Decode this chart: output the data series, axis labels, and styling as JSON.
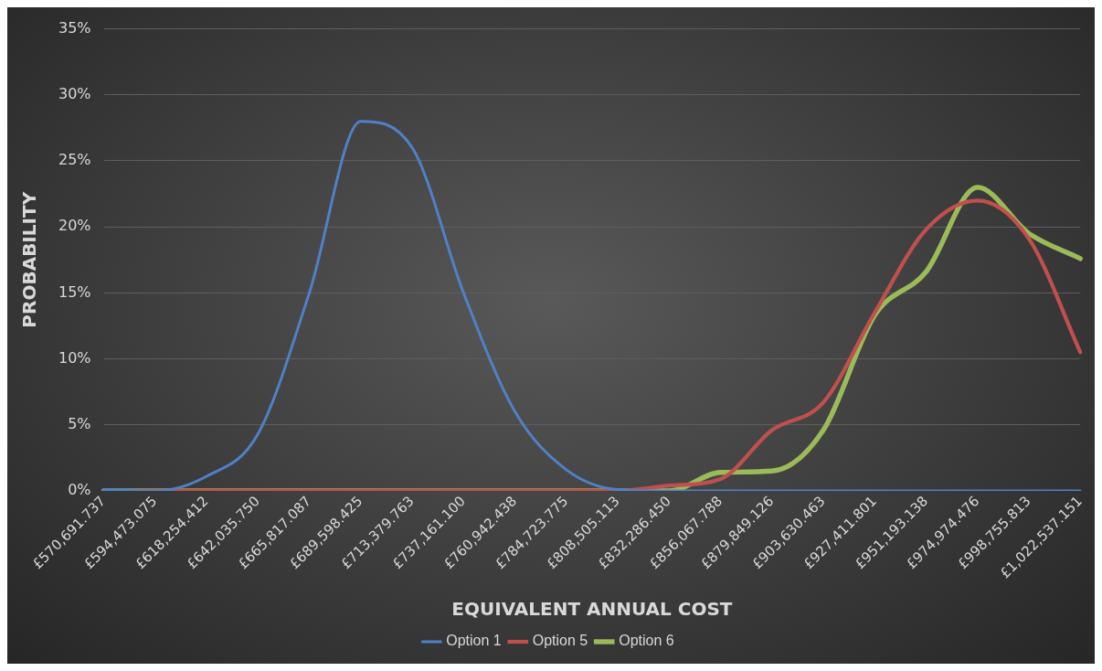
{
  "chart_data": {
    "type": "line",
    "xlabel": "EQUIVALENT ANNUAL COST",
    "ylabel": "PROBABILITY",
    "categories": [
      "£570,691.737",
      "£594,473.075",
      "£618,254.412",
      "£642,035.750",
      "£665,817.087",
      "£689,598.425",
      "£713,379.763",
      "£737,161.100",
      "£760,942.438",
      "£784,723.775",
      "£808,505.113",
      "£832,286.450",
      "£856,067.788",
      "£879,849.126",
      "£903,630.463",
      "£927,411.801",
      "£951,193.138",
      "£974,974.476",
      "£998,755.813",
      "£1,022,537.151"
    ],
    "series": [
      {
        "name": "Option 1",
        "color": "#4f81c7",
        "values": [
          0.1,
          0,
          1.1,
          4.3,
          15,
          28,
          26,
          15,
          6,
          1.6,
          0.1,
          0,
          0,
          0,
          0,
          0,
          0,
          0,
          0,
          0
        ]
      },
      {
        "name": "Option 5",
        "color": "#c0504d",
        "values": [
          0,
          0,
          0,
          0,
          0,
          0,
          0,
          0,
          0,
          0,
          0,
          0.4,
          0.9,
          4.6,
          6.7,
          13.5,
          19.8,
          22,
          19.1,
          10.5
        ]
      },
      {
        "name": "Option 6",
        "color": "#9bbb59",
        "values": [
          0,
          0,
          0,
          0,
          0,
          0,
          0,
          0,
          0,
          0,
          0,
          0,
          1.4,
          1.5,
          4.6,
          13.3,
          16.6,
          23,
          19.5,
          17.6
        ]
      }
    ],
    "ylim": [
      0,
      35
    ],
    "yticks": [
      {
        "value": 0,
        "label": "0%"
      },
      {
        "value": 5,
        "label": "5%"
      },
      {
        "value": 10,
        "label": "10%"
      },
      {
        "value": 15,
        "label": "15%"
      },
      {
        "value": 20,
        "label": "20%"
      },
      {
        "value": 25,
        "label": "25%"
      },
      {
        "value": 30,
        "label": "30%"
      },
      {
        "value": 35,
        "label": "35%"
      }
    ],
    "grid": "y",
    "legend": "bottom",
    "marker": "none",
    "line_style": "solid"
  }
}
